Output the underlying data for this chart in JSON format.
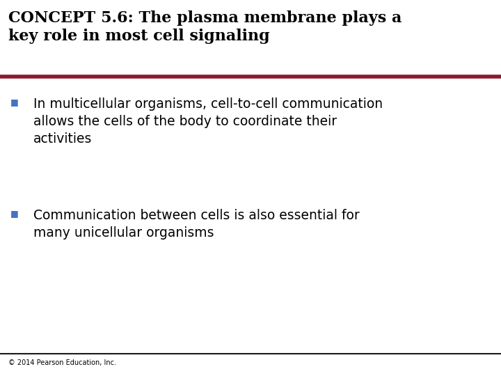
{
  "title_line1": "CONCEPT 5.6: The plasma membrane plays a",
  "title_line2": "key role in most cell signaling",
  "title_color": "#000000",
  "title_fontsize": 16,
  "divider_color_top": "#8B1A2A",
  "divider_color_bottom": "#1A1A1A",
  "bullet_color": "#4472C4",
  "bullet_char": "■",
  "bullet1_line1": "In multicellular organisms, cell-to-cell communication",
  "bullet1_line2": "allows the cells of the body to coordinate their",
  "bullet1_line3": "activities",
  "bullet2_line1": "Communication between cells is also essential for",
  "bullet2_line2": "many unicellular organisms",
  "body_fontsize": 13.5,
  "body_color": "#000000",
  "footer_text": "© 2014 Pearson Education, Inc.",
  "footer_fontsize": 7,
  "bg_color": "#FFFFFF"
}
